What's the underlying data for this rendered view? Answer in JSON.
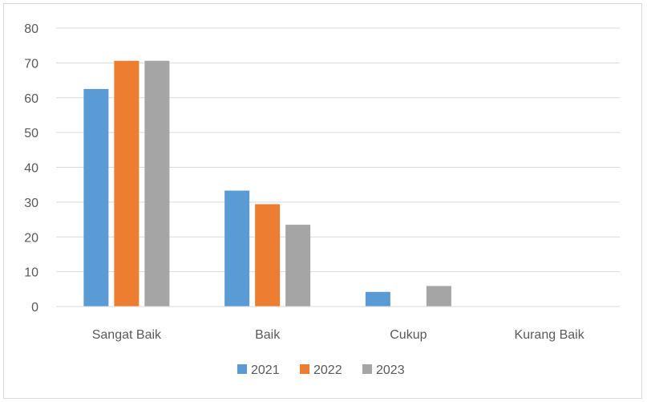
{
  "chart_data": {
    "type": "bar",
    "categories": [
      "Sangat Baik",
      "Baik",
      "Cukup",
      "Kurang Baik"
    ],
    "series": [
      {
        "name": "2021",
        "color": "#5b9bd5",
        "values": [
          62.5,
          33.3,
          4.2,
          0
        ]
      },
      {
        "name": "2022",
        "color": "#ed7d31",
        "values": [
          70.6,
          29.4,
          0,
          0
        ]
      },
      {
        "name": "2023",
        "color": "#a5a5a5",
        "values": [
          70.6,
          23.5,
          5.9,
          0
        ]
      }
    ],
    "yticks": [
      "0",
      "10",
      "20",
      "30",
      "40",
      "50",
      "60",
      "70",
      "80"
    ],
    "ylim": [
      0,
      80
    ],
    "grid": true,
    "legend_position": "bottom"
  }
}
